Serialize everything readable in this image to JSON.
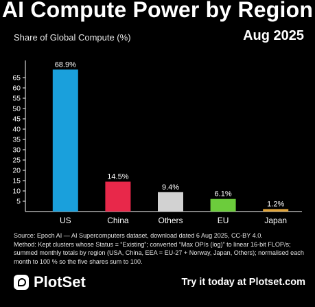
{
  "header": {
    "title": "AI Compute Power by Region",
    "subtitle": "Share of Global Compute (%)",
    "date": "Aug 2025"
  },
  "chart_data": {
    "type": "bar",
    "categories": [
      "US",
      "China",
      "Others",
      "EU",
      "Japan"
    ],
    "values": [
      68.9,
      14.5,
      9.4,
      6.1,
      1.2
    ],
    "value_labels": [
      "68.9%",
      "14.5%",
      "9.4%",
      "6.1%",
      "1.2%"
    ],
    "colors": [
      "#1aa0dc",
      "#e8284a",
      "#d2d2d2",
      "#6ccc3c",
      "#e0a43a"
    ],
    "yticks": [
      5,
      10,
      15,
      20,
      25,
      30,
      35,
      40,
      45,
      50,
      55,
      60,
      65
    ],
    "ylim": [
      0,
      72
    ],
    "grid": false,
    "legend": "none"
  },
  "footer": {
    "source_lines": [
      "Source: Epoch AI — AI Supercomputers dataset, download dated 6 Aug 2025, CC-BY 4.0.",
      "Method: Kept clusters whose Status = “Existing”; converted “Max OP/s (log)” to linear 16-bit FLOP/s;",
      "summed monthly totals by region (USA, China, EEA = EU-27 + Norway, Japan, Others); normalised each",
      "month to 100 % so the five shares sum to 100."
    ],
    "brand_icon": "plotset-logo-icon",
    "brand_name": "PlotSet",
    "cta": "Try it today at Plotset.com"
  }
}
